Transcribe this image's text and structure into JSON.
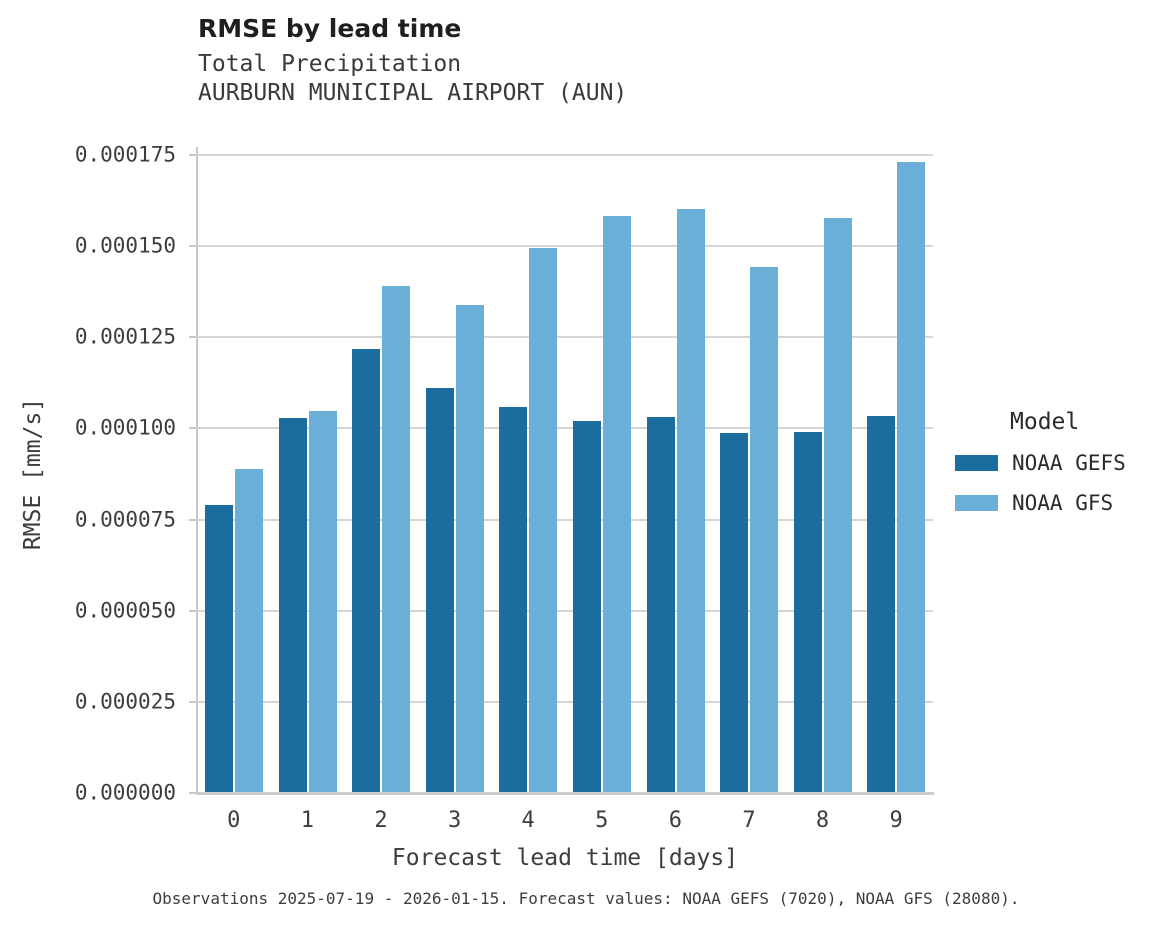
{
  "header": {
    "title": "RMSE by lead time",
    "subtitle_line1": "Total Precipitation",
    "subtitle_line2": "AURBURN MUNICIPAL AIRPORT (AUN)"
  },
  "chart_data": {
    "type": "bar",
    "title": "RMSE by lead time",
    "subtitle": [
      "Total Precipitation",
      "AURBURN MUNICIPAL AIRPORT (AUN)"
    ],
    "xlabel": "Forecast lead time [days]",
    "ylabel": "RMSE [mm/s]",
    "categories": [
      "0",
      "1",
      "2",
      "3",
      "4",
      "5",
      "6",
      "7",
      "8",
      "9"
    ],
    "series": [
      {
        "name": "NOAA GEFS",
        "color": "#1a6d9e",
        "values": [
          7.9e-05,
          0.0001029,
          0.0001218,
          0.0001111,
          0.0001059,
          0.000102,
          0.0001031,
          9.88e-05,
          9.9e-05,
          0.0001034
        ]
      },
      {
        "name": "NOAA GFS",
        "color": "#6bafd9",
        "values": [
          8.89e-05,
          0.0001048,
          0.0001391,
          0.0001339,
          0.0001495,
          0.0001583,
          0.0001602,
          0.0001443,
          0.0001577,
          0.0001731
        ]
      }
    ],
    "ylim": [
      0,
      0.000175
    ],
    "yticks": [
      0,
      2.5e-05,
      5e-05,
      7.5e-05,
      0.0001,
      0.000125,
      0.00015,
      0.000175
    ],
    "ytick_labels": [
      "0.000000",
      "0.000025",
      "0.000050",
      "0.000075",
      "0.000100",
      "0.000125",
      "0.000150",
      "0.000175"
    ],
    "grid": "horizontal",
    "legend_title": "Model",
    "legend_position": "right"
  },
  "legend": {
    "title": "Model",
    "items": [
      {
        "label": "NOAA GEFS",
        "color": "#1a6d9e"
      },
      {
        "label": "NOAA GFS",
        "color": "#6bafd9"
      }
    ]
  },
  "footer": {
    "caption": "Observations 2025-07-19 - 2026-01-15. Forecast values: NOAA GEFS (7020), NOAA GFS (28080)."
  }
}
